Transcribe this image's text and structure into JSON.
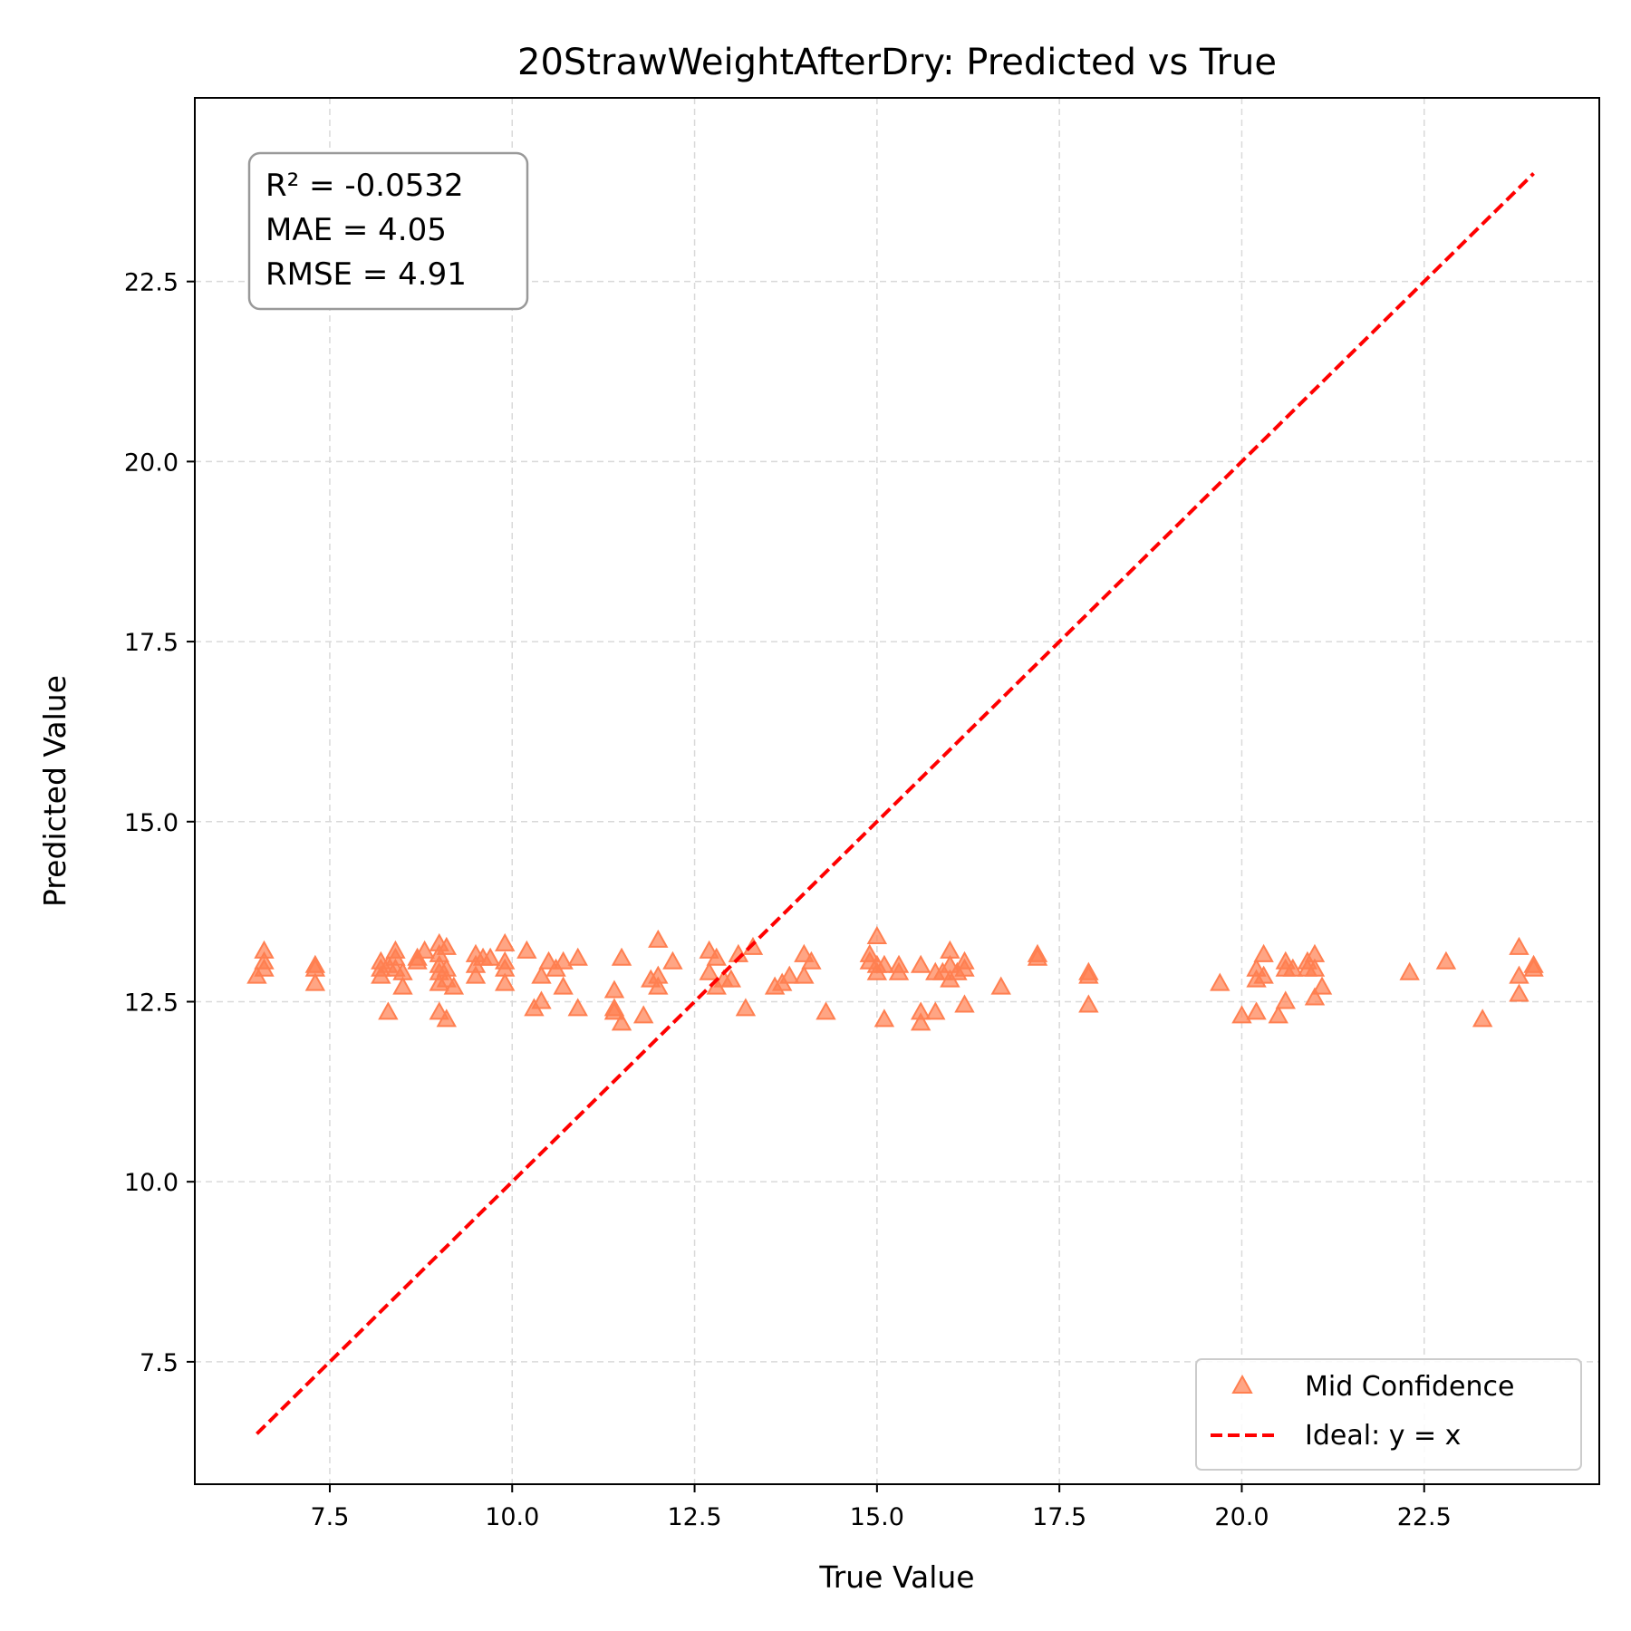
{
  "chart_data": {
    "type": "scatter",
    "title": "20StrawWeightAfterDry: Predicted vs True",
    "xlabel": "True Value",
    "ylabel": "Predicted Value",
    "xlim": [
      5.65,
      24.9
    ],
    "ylim": [
      5.8,
      25.05
    ],
    "xticks": [
      7.5,
      10.0,
      12.5,
      15.0,
      17.5,
      20.0,
      22.5
    ],
    "yticks": [
      7.5,
      10.0,
      12.5,
      15.0,
      17.5,
      20.0,
      22.5
    ],
    "grid": true,
    "legend_position": "lower-right",
    "stats": [
      "R² = -0.0532",
      "MAE = 4.05",
      "RMSE = 4.91"
    ],
    "series": [
      {
        "name": "Mid Confidence",
        "kind": "scatter",
        "marker": "triangle",
        "color": "#ff7f50",
        "points": [
          [
            6.5,
            12.85
          ],
          [
            6.6,
            13.2
          ],
          [
            6.6,
            13.05
          ],
          [
            6.6,
            12.95
          ],
          [
            7.3,
            13.0
          ],
          [
            7.3,
            12.95
          ],
          [
            7.3,
            12.75
          ],
          [
            8.2,
            13.05
          ],
          [
            8.2,
            12.95
          ],
          [
            8.2,
            12.85
          ],
          [
            8.3,
            13.0
          ],
          [
            8.3,
            12.35
          ],
          [
            8.4,
            13.2
          ],
          [
            8.4,
            13.1
          ],
          [
            8.4,
            12.95
          ],
          [
            8.5,
            12.9
          ],
          [
            8.5,
            12.7
          ],
          [
            8.7,
            13.1
          ],
          [
            8.7,
            13.05
          ],
          [
            8.8,
            13.2
          ],
          [
            9.0,
            13.3
          ],
          [
            9.0,
            13.15
          ],
          [
            9.0,
            13.0
          ],
          [
            9.0,
            12.9
          ],
          [
            9.0,
            12.75
          ],
          [
            9.0,
            12.35
          ],
          [
            9.1,
            13.25
          ],
          [
            9.1,
            12.95
          ],
          [
            9.1,
            12.8
          ],
          [
            9.1,
            12.25
          ],
          [
            9.2,
            12.7
          ],
          [
            9.5,
            13.15
          ],
          [
            9.5,
            13.0
          ],
          [
            9.5,
            12.85
          ],
          [
            9.6,
            13.1
          ],
          [
            9.7,
            13.1
          ],
          [
            9.9,
            13.3
          ],
          [
            9.9,
            13.05
          ],
          [
            9.9,
            12.95
          ],
          [
            9.9,
            12.75
          ],
          [
            10.2,
            13.2
          ],
          [
            10.3,
            12.4
          ],
          [
            10.4,
            12.85
          ],
          [
            10.4,
            12.5
          ],
          [
            10.5,
            13.05
          ],
          [
            10.6,
            12.95
          ],
          [
            10.7,
            13.05
          ],
          [
            10.7,
            12.7
          ],
          [
            10.9,
            13.1
          ],
          [
            10.9,
            12.4
          ],
          [
            11.4,
            12.65
          ],
          [
            11.4,
            12.4
          ],
          [
            11.4,
            12.35
          ],
          [
            11.5,
            13.1
          ],
          [
            11.5,
            12.2
          ],
          [
            11.8,
            12.3
          ],
          [
            11.9,
            12.8
          ],
          [
            12.0,
            13.35
          ],
          [
            12.0,
            12.85
          ],
          [
            12.0,
            12.7
          ],
          [
            12.2,
            13.05
          ],
          [
            12.7,
            13.2
          ],
          [
            12.7,
            12.9
          ],
          [
            12.8,
            13.1
          ],
          [
            12.8,
            12.7
          ],
          [
            12.9,
            12.8
          ],
          [
            13.0,
            12.8
          ],
          [
            13.1,
            13.15
          ],
          [
            13.2,
            12.4
          ],
          [
            13.3,
            13.25
          ],
          [
            13.6,
            12.7
          ],
          [
            13.7,
            12.75
          ],
          [
            13.8,
            12.85
          ],
          [
            14.0,
            13.15
          ],
          [
            14.0,
            12.85
          ],
          [
            14.1,
            13.05
          ],
          [
            14.3,
            12.35
          ],
          [
            14.9,
            13.15
          ],
          [
            14.9,
            13.05
          ],
          [
            15.0,
            13.4
          ],
          [
            15.0,
            13.0
          ],
          [
            15.0,
            12.9
          ],
          [
            15.1,
            13.0
          ],
          [
            15.1,
            12.25
          ],
          [
            15.3,
            13.0
          ],
          [
            15.3,
            12.9
          ],
          [
            15.6,
            13.0
          ],
          [
            15.6,
            12.35
          ],
          [
            15.6,
            12.2
          ],
          [
            15.8,
            12.9
          ],
          [
            15.8,
            12.35
          ],
          [
            15.9,
            12.9
          ],
          [
            16.0,
            13.2
          ],
          [
            16.0,
            13.0
          ],
          [
            16.0,
            12.8
          ],
          [
            16.1,
            12.9
          ],
          [
            16.2,
            13.05
          ],
          [
            16.2,
            12.95
          ],
          [
            16.2,
            12.45
          ],
          [
            16.7,
            12.7
          ],
          [
            17.2,
            13.15
          ],
          [
            17.2,
            13.1
          ],
          [
            17.9,
            12.9
          ],
          [
            17.9,
            12.85
          ],
          [
            17.9,
            12.45
          ],
          [
            19.7,
            12.75
          ],
          [
            20.0,
            12.3
          ],
          [
            20.2,
            12.95
          ],
          [
            20.2,
            12.8
          ],
          [
            20.2,
            12.35
          ],
          [
            20.3,
            13.15
          ],
          [
            20.3,
            12.85
          ],
          [
            20.5,
            12.3
          ],
          [
            20.6,
            13.05
          ],
          [
            20.6,
            12.95
          ],
          [
            20.6,
            12.5
          ],
          [
            20.7,
            12.95
          ],
          [
            20.9,
            13.05
          ],
          [
            20.9,
            12.95
          ],
          [
            21.0,
            13.15
          ],
          [
            21.0,
            12.95
          ],
          [
            21.0,
            12.55
          ],
          [
            21.1,
            12.7
          ],
          [
            22.3,
            12.9
          ],
          [
            22.8,
            13.05
          ],
          [
            23.3,
            12.25
          ],
          [
            23.8,
            13.25
          ],
          [
            23.8,
            12.85
          ],
          [
            23.8,
            12.6
          ],
          [
            24.0,
            13.0
          ],
          [
            24.0,
            12.95
          ]
        ]
      },
      {
        "name": "Ideal: y = x",
        "kind": "line",
        "style": "dashed",
        "color": "#ff0000",
        "x": [
          6.5,
          24.0
        ],
        "y": [
          6.5,
          24.0
        ]
      }
    ]
  }
}
